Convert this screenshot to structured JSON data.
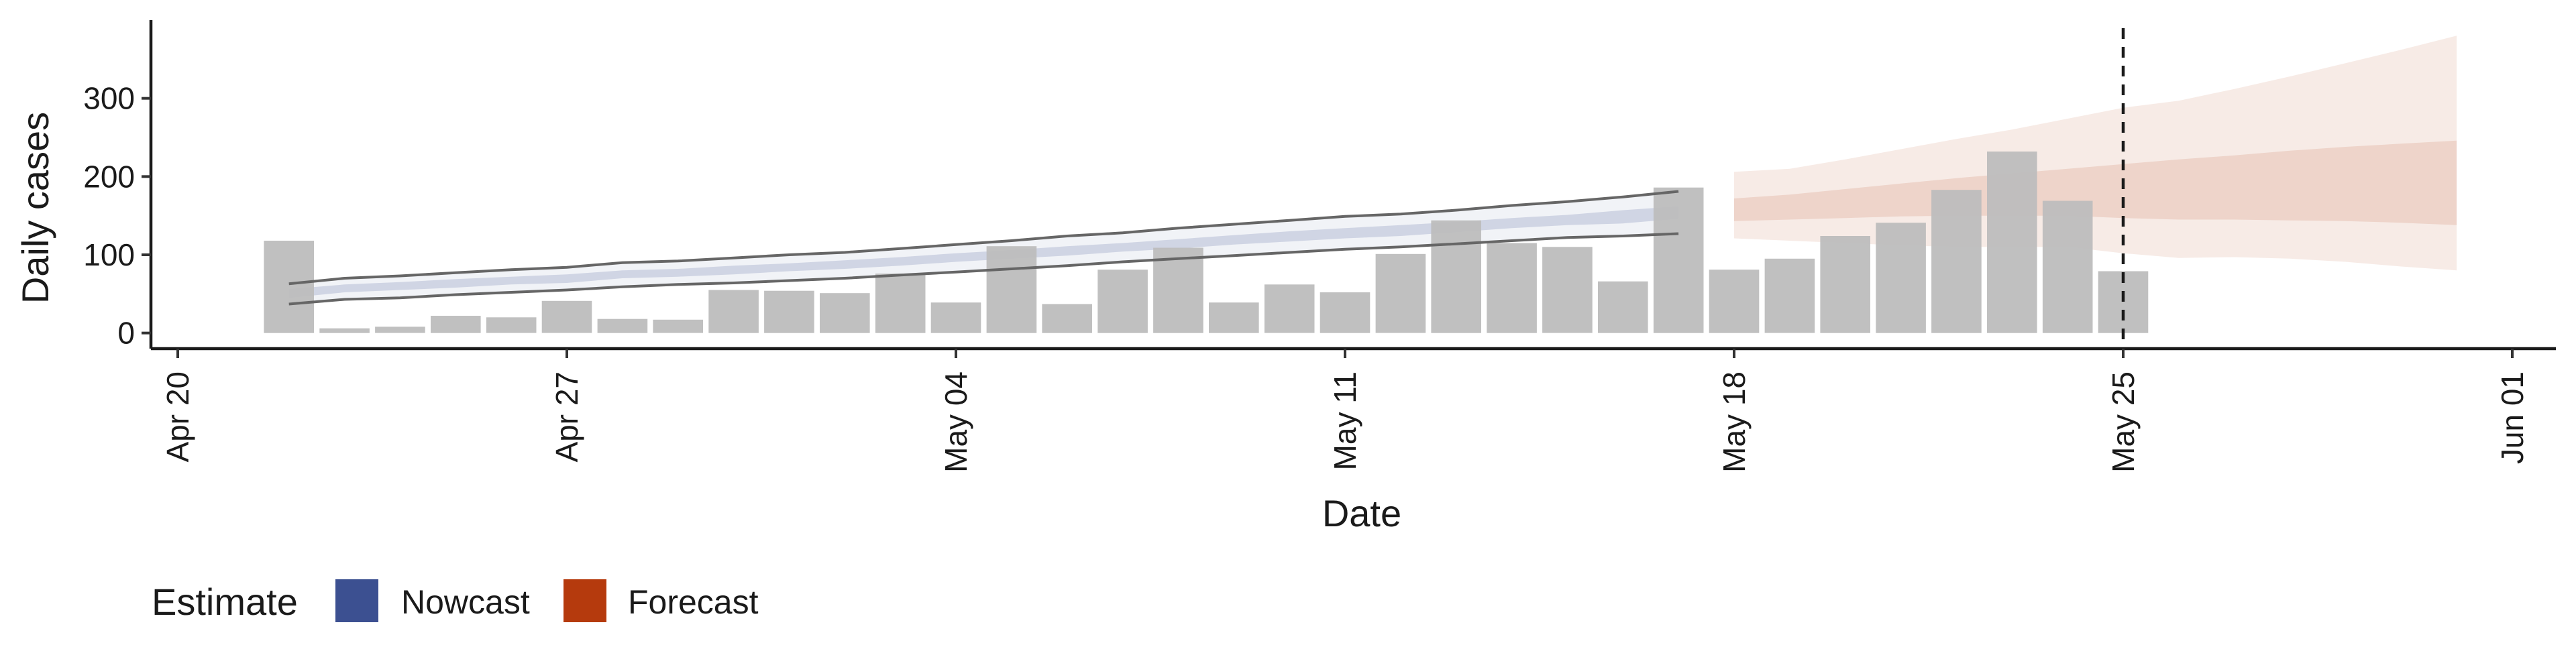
{
  "chart_data": {
    "type": "bar",
    "xlabel": "Date",
    "ylabel": "Daily cases",
    "x_axis_type": "date",
    "x_range": [
      "2020-04-20",
      "2020-06-01"
    ],
    "x_ticks": [
      "2020-04-20",
      "2020-04-27",
      "2020-05-04",
      "2020-05-11",
      "2020-05-18",
      "2020-05-25",
      "2020-06-01"
    ],
    "x_tick_labels": [
      "Apr 20",
      "Apr 27",
      "May 04",
      "May 11",
      "May 18",
      "May 25",
      "Jun 01"
    ],
    "y_range": [
      -20,
      400
    ],
    "y_ticks": [
      0,
      100,
      200,
      300
    ],
    "y_tick_labels": [
      "0",
      "100",
      "200",
      "300"
    ],
    "grid": false,
    "reference_line": {
      "date": "2020-05-25",
      "style": "dashed"
    },
    "bars": {
      "color": "#bdbdbd",
      "dates": [
        "2020-04-22",
        "2020-04-23",
        "2020-04-24",
        "2020-04-25",
        "2020-04-26",
        "2020-04-27",
        "2020-04-28",
        "2020-04-29",
        "2020-04-30",
        "2020-05-01",
        "2020-05-02",
        "2020-05-03",
        "2020-05-04",
        "2020-05-05",
        "2020-05-06",
        "2020-05-07",
        "2020-05-08",
        "2020-05-09",
        "2020-05-10",
        "2020-05-11",
        "2020-05-12",
        "2020-05-13",
        "2020-05-14",
        "2020-05-15",
        "2020-05-16",
        "2020-05-17",
        "2020-05-18",
        "2020-05-19",
        "2020-05-20",
        "2020-05-21",
        "2020-05-22",
        "2020-05-23",
        "2020-05-24",
        "2020-05-25"
      ],
      "values": [
        118,
        6,
        8,
        22,
        20,
        41,
        18,
        17,
        55,
        54,
        51,
        76,
        39,
        111,
        37,
        81,
        109,
        39,
        62,
        52,
        101,
        144,
        115,
        110,
        66,
        186,
        81,
        95,
        124,
        141,
        183,
        232,
        169,
        79
      ]
    },
    "nowcast": {
      "color": "#3c5091",
      "dates": [
        "2020-04-22",
        "2020-04-23",
        "2020-04-24",
        "2020-04-25",
        "2020-04-26",
        "2020-04-27",
        "2020-04-28",
        "2020-04-29",
        "2020-04-30",
        "2020-05-01",
        "2020-05-02",
        "2020-05-03",
        "2020-05-04",
        "2020-05-05",
        "2020-05-06",
        "2020-05-07",
        "2020-05-08",
        "2020-05-09",
        "2020-05-10",
        "2020-05-11",
        "2020-05-12",
        "2020-05-13",
        "2020-05-14",
        "2020-05-15",
        "2020-05-16",
        "2020-05-17"
      ],
      "outer_lower": [
        37,
        43,
        45,
        49,
        52,
        55,
        59,
        62,
        64,
        67,
        70,
        74,
        78,
        82,
        86,
        91,
        95,
        99,
        103,
        107,
        110,
        114,
        118,
        122,
        124,
        127
      ],
      "outer_upper": [
        63,
        70,
        73,
        77,
        81,
        84,
        90,
        92,
        96,
        100,
        103,
        108,
        113,
        118,
        124,
        128,
        134,
        139,
        144,
        149,
        152,
        157,
        163,
        168,
        174,
        181
      ],
      "inner_lower": [
        45,
        52,
        55,
        58,
        62,
        64,
        70,
        72,
        75,
        79,
        82,
        86,
        91,
        95,
        99,
        104,
        108,
        113,
        117,
        121,
        124,
        129,
        134,
        138,
        140,
        146
      ],
      "inner_upper": [
        56,
        62,
        65,
        69,
        72,
        75,
        80,
        82,
        86,
        89,
        93,
        97,
        102,
        106,
        111,
        115,
        120,
        125,
        130,
        134,
        138,
        142,
        147,
        151,
        157,
        162
      ]
    },
    "forecast": {
      "color": "#b53a0d",
      "dates": [
        "2020-05-18",
        "2020-05-19",
        "2020-05-20",
        "2020-05-21",
        "2020-05-22",
        "2020-05-23",
        "2020-05-24",
        "2020-05-25",
        "2020-05-26",
        "2020-05-27",
        "2020-05-28",
        "2020-05-29",
        "2020-05-30",
        "2020-05-31"
      ],
      "outer_lower": [
        121,
        118,
        115,
        112,
        110,
        110,
        110,
        102,
        96,
        97,
        95,
        91,
        85,
        80
      ],
      "outer_upper": [
        206,
        210,
        222,
        235,
        248,
        260,
        274,
        288,
        297,
        312,
        328,
        345,
        362,
        380
      ],
      "inner_lower": [
        143,
        145,
        147,
        149,
        150,
        150,
        150,
        147,
        145,
        145,
        144,
        143,
        141,
        138
      ],
      "inner_upper": [
        172,
        177,
        184,
        191,
        198,
        204,
        210,
        216,
        222,
        227,
        233,
        238,
        242,
        246
      ]
    },
    "legend": {
      "title": "Estimate",
      "position": "bottom-left",
      "entries": [
        {
          "label": "Nowcast",
          "color": "#3c5091"
        },
        {
          "label": "Forecast",
          "color": "#b53a0d"
        }
      ]
    }
  }
}
